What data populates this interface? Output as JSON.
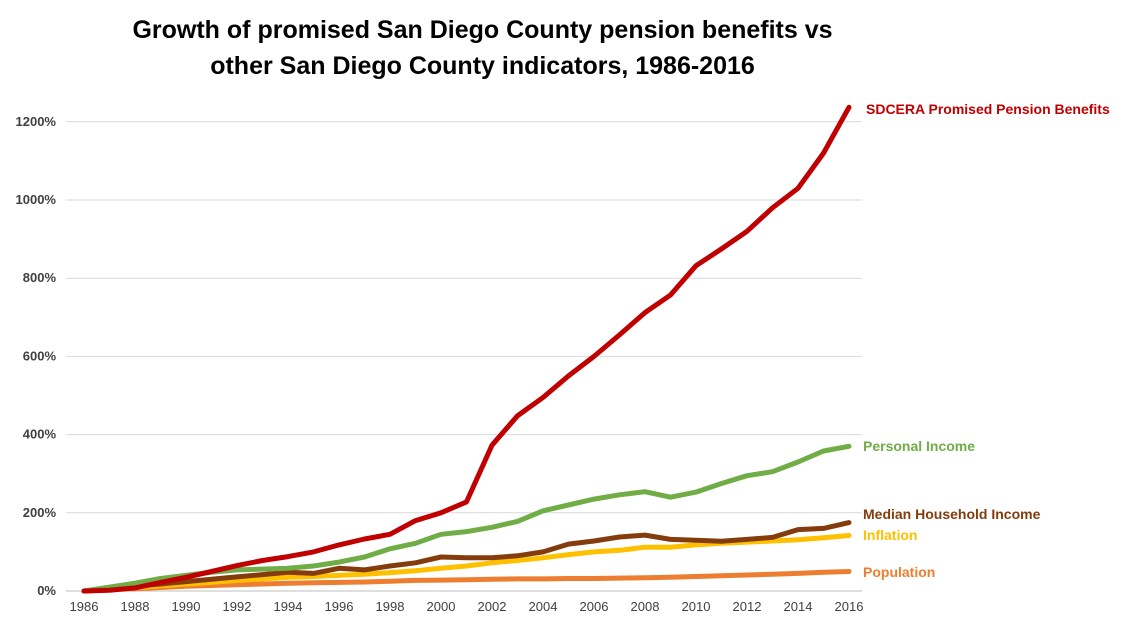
{
  "title_line1": "Growth of promised San Diego County pension benefits vs",
  "title_line2": "other San Diego County indicators, 1986-2016",
  "chart_data": {
    "type": "line",
    "title": "Growth of promised San Diego County pension benefits vs other San Diego County indicators, 1986-2016",
    "xlabel": "",
    "ylabel": "",
    "x": [
      1986,
      1987,
      1988,
      1989,
      1990,
      1991,
      1992,
      1993,
      1994,
      1995,
      1996,
      1997,
      1998,
      1999,
      2000,
      2001,
      2002,
      2003,
      2004,
      2005,
      2006,
      2007,
      2008,
      2009,
      2010,
      2011,
      2012,
      2013,
      2014,
      2015,
      2016
    ],
    "xticks": [
      "1986",
      "1988",
      "1990",
      "1992",
      "1994",
      "1996",
      "1998",
      "2000",
      "2002",
      "2004",
      "2006",
      "2008",
      "2010",
      "2012",
      "2014",
      "2016"
    ],
    "yticks": [
      "0%",
      "200%",
      "400%",
      "600%",
      "800%",
      "1000%",
      "1200%"
    ],
    "ylim": [
      0,
      1250
    ],
    "xlim": [
      1986,
      2016
    ],
    "grid": "horizontal",
    "legend": "direct labels at line ends (right)",
    "series": [
      {
        "name": "Population",
        "color": "#ed7d31",
        "values": [
          0,
          3,
          6,
          9,
          12,
          14,
          16,
          18,
          20,
          21,
          22,
          23,
          25,
          27,
          28,
          29,
          30,
          31,
          31,
          32,
          32,
          33,
          34,
          35,
          37,
          39,
          41,
          43,
          45,
          48,
          50
        ]
      },
      {
        "name": "Inflation",
        "color": "#ffc000",
        "values": [
          0,
          4,
          8,
          13,
          18,
          22,
          27,
          31,
          35,
          37,
          40,
          43,
          47,
          52,
          58,
          64,
          72,
          78,
          85,
          93,
          100,
          104,
          112,
          112,
          118,
          122,
          125,
          128,
          131,
          136,
          142
        ]
      },
      {
        "name": "Median Household Income",
        "color": "#843c0c",
        "values": [
          0,
          6,
          12,
          18,
          24,
          30,
          36,
          42,
          48,
          45,
          58,
          54,
          64,
          72,
          87,
          85,
          85,
          90,
          100,
          120,
          128,
          138,
          143,
          132,
          130,
          127,
          132,
          137,
          157,
          160,
          175
        ]
      },
      {
        "name": "Personal Income",
        "color": "#70ad47",
        "values": [
          0,
          10,
          20,
          32,
          40,
          48,
          54,
          56,
          58,
          64,
          74,
          87,
          108,
          122,
          145,
          152,
          163,
          178,
          205,
          220,
          235,
          246,
          254,
          240,
          253,
          275,
          295,
          305,
          330,
          358,
          370
        ]
      },
      {
        "name": "SDCERA Promised Pension Benefits",
        "color": "#c00000",
        "values": [
          0,
          2,
          8,
          22,
          35,
          50,
          65,
          78,
          88,
          100,
          118,
          133,
          145,
          180,
          200,
          228,
          373,
          448,
          495,
          550,
          600,
          655,
          712,
          757,
          832,
          875,
          920,
          980,
          1030,
          1120,
          1237
        ]
      }
    ]
  }
}
